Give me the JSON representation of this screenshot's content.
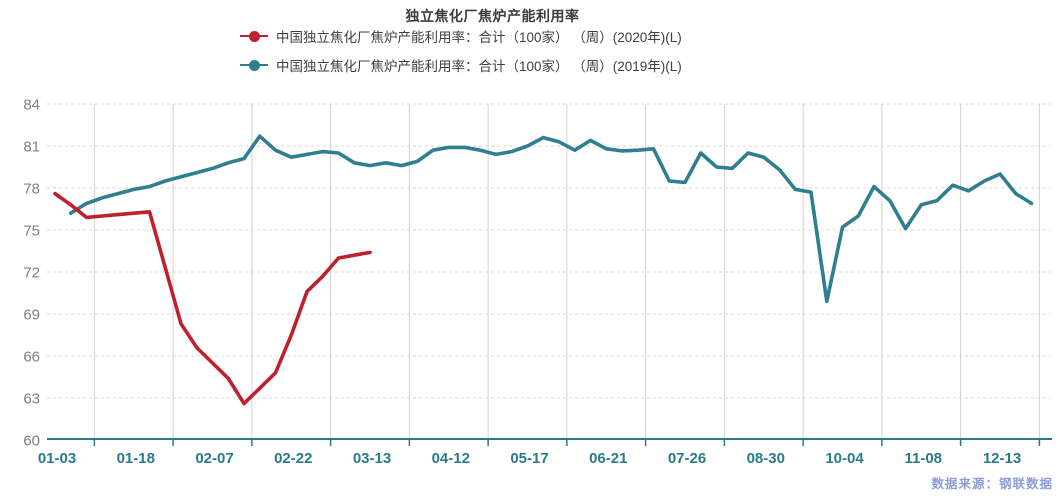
{
  "title": "独立焦化厂焦炉产能利用率",
  "watermark": "数据来源：钢联数据",
  "legend": [
    {
      "label": "中国独立焦化厂焦炉产能利用率：合计（100家） （周）(2020年)(L)",
      "color": "#c0202d"
    },
    {
      "label": "中国独立焦化厂焦炉产能利用率：合计（100家） （周）(2019年)(L)",
      "color": "#2f7f8f"
    }
  ],
  "colors": {
    "series_2020": "#c0202d",
    "series_2019": "#2f7f8f",
    "axis_line": "#2a7b8a",
    "x_tick_label": "#2a7b8a",
    "y_tick_label": "#7f7f7f",
    "grid_h": "#d9d9d9",
    "grid_v": "#d2d2d2",
    "title_text": "#3d3d3d",
    "watermark_text": "#8d9ed6",
    "background": "#ffffff"
  },
  "chart_data": {
    "type": "line",
    "title": "独立焦化厂焦炉产能利用率",
    "xlabel": "",
    "ylabel": "",
    "ylim": [
      60,
      84
    ],
    "y_ticks": [
      60,
      63,
      66,
      69,
      72,
      75,
      78,
      81,
      84
    ],
    "x_tick_labels": [
      "01-03",
      "01-18",
      "02-07",
      "02-22",
      "03-13",
      "04-12",
      "05-17",
      "06-21",
      "07-26",
      "08-30",
      "10-04",
      "11-08",
      "12-13"
    ],
    "points_per_label_interval": 5,
    "grid": true,
    "legend_position": "top",
    "series": [
      {
        "name": "中国独立焦化厂焦炉产能利用率：合计（100家） （周）(2020年)(L)",
        "color": "#c0202d",
        "start_index": 0,
        "values": [
          77.6,
          76.8,
          75.9,
          76.0,
          76.1,
          76.2,
          76.3,
          72.3,
          68.3,
          66.6,
          65.5,
          64.4,
          62.6,
          63.7,
          64.8,
          67.5,
          70.6,
          71.7,
          73.0,
          73.2,
          73.4
        ]
      },
      {
        "name": "中国独立焦化厂焦炉产能利用率：合计（100家） （周）(2019年)(L)",
        "color": "#2f7f8f",
        "start_index": 1,
        "values": [
          76.2,
          76.9,
          77.3,
          77.6,
          77.9,
          78.1,
          78.5,
          78.8,
          79.1,
          79.4,
          79.8,
          80.1,
          81.7,
          80.7,
          80.2,
          80.4,
          80.6,
          80.5,
          79.8,
          79.6,
          79.8,
          79.6,
          79.9,
          80.7,
          80.9,
          80.9,
          80.7,
          80.4,
          80.6,
          81.0,
          81.6,
          81.3,
          80.7,
          81.4,
          80.8,
          80.65,
          80.7,
          80.8,
          78.5,
          78.4,
          80.5,
          79.5,
          79.4,
          80.5,
          80.2,
          79.3,
          77.9,
          77.7,
          69.9,
          75.2,
          76.0,
          78.1,
          77.1,
          75.1,
          76.8,
          77.1,
          78.2,
          77.8,
          78.5,
          79.0,
          77.6,
          76.9
        ]
      }
    ]
  }
}
